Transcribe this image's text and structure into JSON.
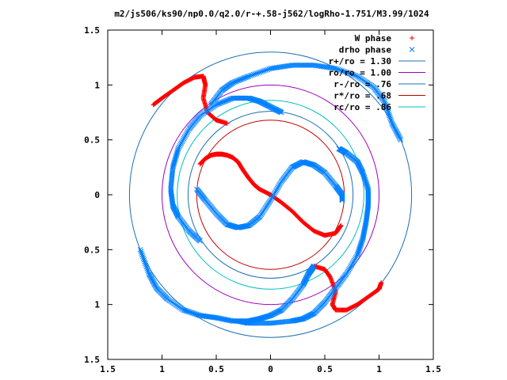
{
  "chart_data": {
    "type": "scatter",
    "title": "m2/js506/ks90/np0.0/q2.0/r-+.58-j562/logRho-1.751/M3.99/1024",
    "xlim": [
      -1.5,
      1.5
    ],
    "ylim": [
      -1.5,
      1.5
    ],
    "x_ticks": [
      -1.5,
      -1,
      -0.5,
      0,
      0.5,
      1,
      1.5
    ],
    "y_ticks": [
      -1.5,
      -1,
      -0.5,
      0,
      0.5,
      1,
      1.5
    ],
    "x_tick_labels": [
      "1.5",
      "1",
      "0.5",
      "0",
      "0.5",
      "1",
      "1.5"
    ],
    "y_tick_labels": [
      "1.5",
      "1",
      "0.5",
      "0",
      "0.5",
      "1",
      "1.5"
    ],
    "grid": false,
    "legend_position": "top-right",
    "legend": [
      {
        "label": "W phase",
        "marker": "+",
        "color": "#ff0000"
      },
      {
        "label": "drho phase",
        "marker": "x",
        "color": "#0080ff"
      },
      {
        "label": "r+/ro = 1.30",
        "color": "#1f6fb4"
      },
      {
        "label": "ro/ro = 1.00",
        "color": "#a000c0"
      },
      {
        "label": "r-/ro = .76",
        "color": "#1f6fb4"
      },
      {
        "label": "r*/ro = .68",
        "color": "#c00000"
      },
      {
        "label": "rc/ro = .86",
        "color": "#00c0c0"
      }
    ],
    "circles": [
      {
        "r": 1.3,
        "color": "#1f6fb4"
      },
      {
        "r": 1.0,
        "color": "#a000c0"
      },
      {
        "r": 0.76,
        "color": "#1f6fb4"
      },
      {
        "r": 0.68,
        "color": "#c00000"
      },
      {
        "r": 0.86,
        "color": "#00c0c0"
      }
    ],
    "series": [
      {
        "name": "W phase",
        "color": "#ff0000",
        "marker": "+",
        "curves": [
          {
            "x": [
              -1.08,
              -1.0,
              -0.9,
              -0.8,
              -0.7,
              -0.62,
              -0.6,
              -0.62,
              -0.58,
              -0.5,
              -0.4
            ],
            "y": [
              0.82,
              0.88,
              0.95,
              1.02,
              1.07,
              1.08,
              1.0,
              0.88,
              0.75,
              0.68,
              0.65
            ]
          },
          {
            "x": [
              -0.65,
              -0.6,
              -0.55,
              -0.5,
              -0.45,
              -0.4,
              -0.35,
              -0.3,
              -0.25,
              -0.2,
              -0.15,
              -0.1,
              0.0,
              0.1,
              0.2,
              0.3,
              0.4,
              0.5,
              0.6,
              0.65
            ],
            "y": [
              0.28,
              0.33,
              0.36,
              0.37,
              0.37,
              0.36,
              0.34,
              0.3,
              0.22,
              0.15,
              0.09,
              0.05,
              0.0,
              -0.07,
              -0.15,
              -0.25,
              -0.33,
              -0.37,
              -0.35,
              -0.28
            ]
          },
          {
            "x": [
              0.4,
              0.5,
              0.55,
              0.6,
              0.57,
              0.6,
              0.7,
              0.8,
              0.9,
              1.0,
              1.02
            ],
            "y": [
              -0.65,
              -0.68,
              -0.75,
              -0.88,
              -1.0,
              -1.05,
              -1.05,
              -1.0,
              -0.93,
              -0.86,
              -0.8
            ]
          }
        ]
      },
      {
        "name": "drho phase",
        "color": "#0080ff",
        "marker": "x",
        "curves": [
          {
            "x": [
              -0.68,
              -0.6,
              -0.5,
              -0.4,
              -0.3,
              -0.2,
              -0.1,
              0.0,
              0.1,
              0.2,
              0.3,
              0.4,
              0.5,
              0.6,
              0.66,
              0.66
            ],
            "y": [
              0.05,
              -0.05,
              -0.17,
              -0.27,
              -0.3,
              -0.28,
              -0.2,
              -0.05,
              0.12,
              0.25,
              0.3,
              0.27,
              0.2,
              0.08,
              0.0,
              -0.05
            ]
          },
          {
            "x": [
              0.1,
              0.0,
              -0.1,
              -0.2,
              -0.35,
              -0.5,
              -0.65,
              -0.75,
              -0.85,
              -0.9,
              -0.92,
              -0.9,
              -0.85,
              -0.75,
              -0.65
            ],
            "y": [
              0.75,
              0.8,
              0.85,
              0.88,
              0.88,
              0.82,
              0.72,
              0.6,
              0.42,
              0.25,
              0.05,
              -0.1,
              -0.2,
              -0.33,
              -0.42
            ]
          },
          {
            "x": [
              -0.55,
              -0.45,
              -0.35,
              -0.2,
              0.0,
              0.2,
              0.4,
              0.6,
              0.8,
              0.95,
              1.05,
              1.12,
              1.2
            ],
            "y": [
              0.82,
              0.95,
              1.02,
              1.08,
              1.15,
              1.18,
              1.18,
              1.15,
              1.08,
              0.98,
              0.85,
              0.65,
              0.5
            ]
          },
          {
            "x": [
              0.63,
              0.7,
              0.8,
              0.85,
              0.9,
              0.9,
              0.88,
              0.85,
              0.8,
              0.7,
              0.6,
              0.5,
              0.4,
              0.3,
              0.2,
              0.0,
              -0.2,
              -0.3
            ],
            "y": [
              0.42,
              0.38,
              0.3,
              0.2,
              0.05,
              -0.1,
              -0.25,
              -0.4,
              -0.55,
              -0.72,
              -0.85,
              -0.98,
              -1.08,
              -1.13,
              -1.15,
              -1.17,
              -1.17,
              -1.15
            ]
          },
          {
            "x": [
              0.4,
              0.35,
              0.3,
              0.2,
              0.1,
              0.0,
              -0.1,
              -0.2,
              -0.35,
              -0.5,
              -0.65,
              -0.8,
              -0.95,
              -1.05,
              -1.12,
              -1.2
            ],
            "y": [
              -0.65,
              -0.72,
              -0.82,
              -0.95,
              -1.05,
              -1.1,
              -1.13,
              -1.15,
              -1.15,
              -1.12,
              -1.1,
              -1.05,
              -0.95,
              -0.85,
              -0.72,
              -0.5
            ]
          }
        ]
      }
    ]
  }
}
